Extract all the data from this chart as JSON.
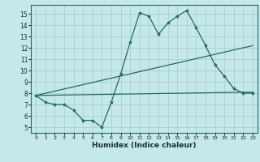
{
  "xlabel": "Humidex (Indice chaleur)",
  "xlim": [
    -0.5,
    23.5
  ],
  "ylim": [
    4.5,
    15.8
  ],
  "yticks": [
    5,
    6,
    7,
    8,
    9,
    10,
    11,
    12,
    13,
    14,
    15
  ],
  "xticks": [
    0,
    1,
    2,
    3,
    4,
    5,
    6,
    7,
    8,
    9,
    10,
    11,
    12,
    13,
    14,
    15,
    16,
    17,
    18,
    19,
    20,
    21,
    22,
    23
  ],
  "bg_color": "#c5e8e8",
  "grid_color": "#a8cfcf",
  "line_color": "#1e6b6b",
  "line1_x": [
    0,
    1,
    2,
    3,
    4,
    5,
    6,
    7,
    8,
    9,
    10,
    11,
    12,
    13,
    14,
    15,
    16,
    17,
    18,
    19,
    20,
    21,
    22,
    23
  ],
  "line1_y": [
    7.8,
    7.2,
    7.0,
    7.0,
    6.5,
    5.6,
    5.6,
    5.0,
    7.2,
    9.7,
    12.5,
    15.1,
    14.8,
    13.2,
    14.2,
    14.8,
    15.3,
    13.8,
    12.2,
    10.5,
    9.5,
    8.4,
    8.0,
    8.0
  ],
  "line2_x": [
    0,
    23
  ],
  "line2_y": [
    7.8,
    12.2
  ],
  "line3_x": [
    0,
    23
  ],
  "line3_y": [
    7.8,
    8.1
  ]
}
